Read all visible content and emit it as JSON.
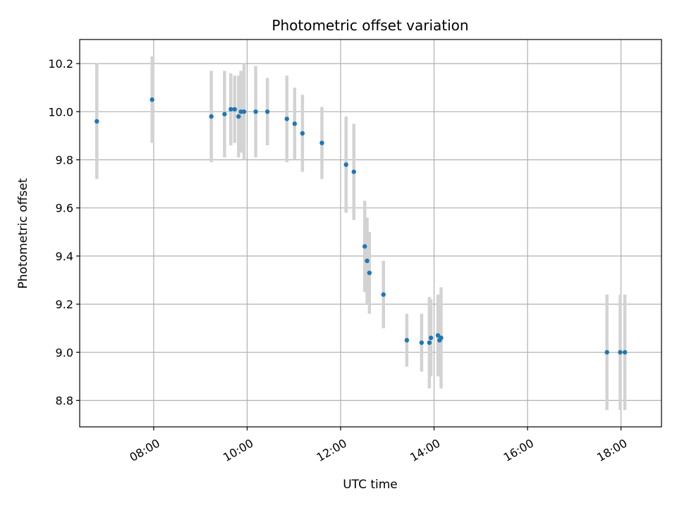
{
  "chart_data": {
    "type": "scatter",
    "title": "Photometric offset variation",
    "xlabel": "UTC time",
    "ylabel": "Photometric offset",
    "x_is_time": true,
    "x_ticks": [
      "08:00",
      "10:00",
      "12:00",
      "14:00",
      "16:00",
      "18:00"
    ],
    "y_ticks": [
      "8.8",
      "9.0",
      "9.2",
      "9.4",
      "9.6",
      "9.8",
      "10.0",
      "10.2"
    ],
    "xlim": [
      "06:25",
      "18:52"
    ],
    "ylim": [
      8.69,
      10.3
    ],
    "grid": true,
    "colors": {
      "point": "#1f77b4",
      "errorbar": "#d3d3d3",
      "grid": "#b0b0b0"
    },
    "points": [
      {
        "x": "06:47",
        "y": 9.96,
        "err": 0.24
      },
      {
        "x": "07:58",
        "y": 10.05,
        "err": 0.18
      },
      {
        "x": "09:14",
        "y": 9.98,
        "err": 0.19
      },
      {
        "x": "09:31",
        "y": 9.99,
        "err": 0.18
      },
      {
        "x": "09:39",
        "y": 10.01,
        "err": 0.15
      },
      {
        "x": "09:44",
        "y": 10.01,
        "err": 0.14
      },
      {
        "x": "09:49",
        "y": 9.98,
        "err": 0.17
      },
      {
        "x": "09:52",
        "y": 10.0,
        "err": 0.17
      },
      {
        "x": "09:56",
        "y": 10.0,
        "err": 0.2
      },
      {
        "x": "10:11",
        "y": 10.0,
        "err": 0.19
      },
      {
        "x": "10:26",
        "y": 10.0,
        "err": 0.14
      },
      {
        "x": "10:51",
        "y": 9.97,
        "err": 0.18
      },
      {
        "x": "11:01",
        "y": 9.95,
        "err": 0.15
      },
      {
        "x": "11:11",
        "y": 9.91,
        "err": 0.16
      },
      {
        "x": "11:36",
        "y": 9.87,
        "err": 0.15
      },
      {
        "x": "12:07",
        "y": 9.78,
        "err": 0.2
      },
      {
        "x": "12:17",
        "y": 9.75,
        "err": 0.2
      },
      {
        "x": "12:31",
        "y": 9.44,
        "err": 0.19
      },
      {
        "x": "12:34",
        "y": 9.38,
        "err": 0.18
      },
      {
        "x": "12:37",
        "y": 9.33,
        "err": 0.17
      },
      {
        "x": "12:55",
        "y": 9.24,
        "err": 0.14
      },
      {
        "x": "13:25",
        "y": 9.05,
        "err": 0.11
      },
      {
        "x": "13:44",
        "y": 9.04,
        "err": 0.12
      },
      {
        "x": "13:54",
        "y": 9.04,
        "err": 0.19
      },
      {
        "x": "13:56",
        "y": 9.06,
        "err": 0.16
      },
      {
        "x": "14:05",
        "y": 9.07,
        "err": 0.17
      },
      {
        "x": "14:07",
        "y": 9.05,
        "err": 0.15
      },
      {
        "x": "14:09",
        "y": 9.06,
        "err": 0.21
      },
      {
        "x": "17:42",
        "y": 9.0,
        "err": 0.24
      },
      {
        "x": "17:59",
        "y": 9.0,
        "err": 0.24
      },
      {
        "x": "18:05",
        "y": 9.0,
        "err": 0.24
      }
    ]
  }
}
